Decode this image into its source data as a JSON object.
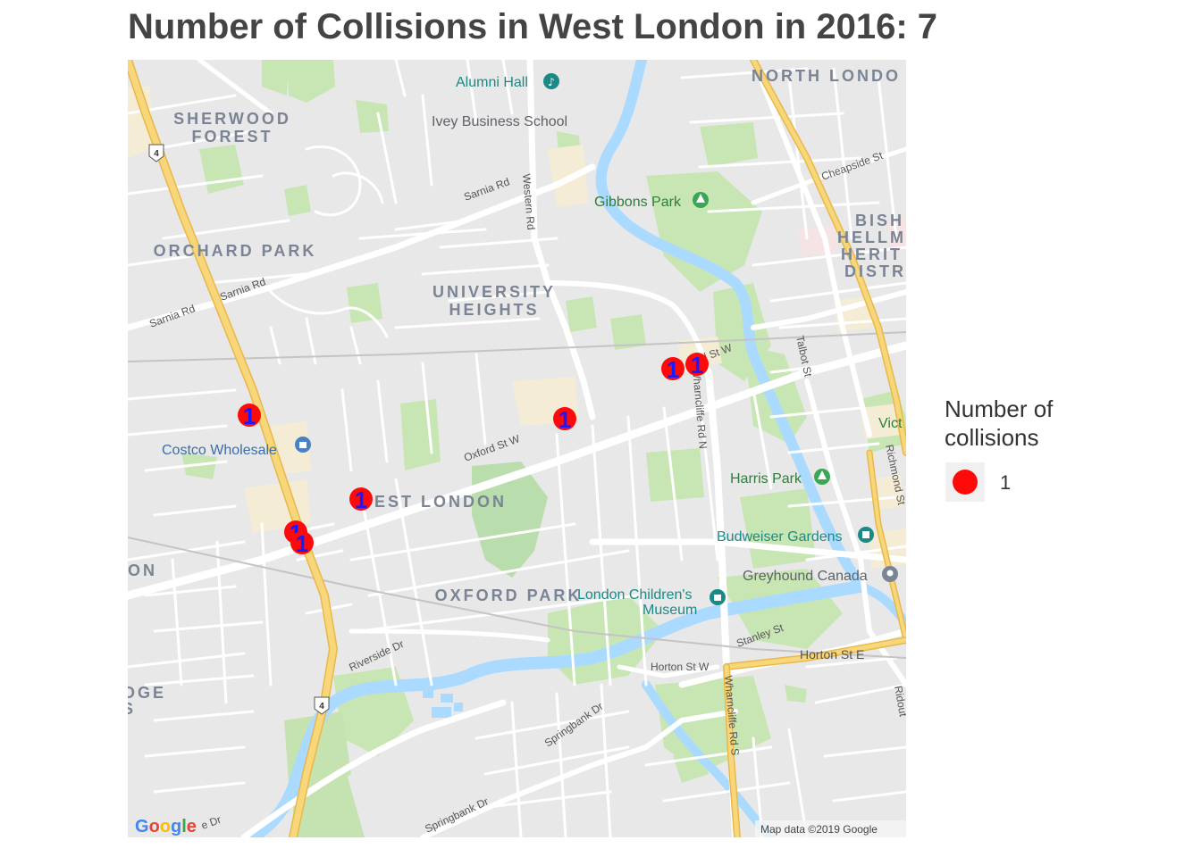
{
  "title": "Number of Collisions in West London in 2016: 7",
  "colors": {
    "marker": "#ff0a0a",
    "marker_text": "#1a1aff",
    "map_bg": "#e8e8e8",
    "park": "#c8e6b4",
    "water": "#aadaff",
    "highway": "#f7d77a",
    "campus": "#f5ecd5"
  },
  "map": {
    "area_labels": [
      {
        "name": "sherwood-forest",
        "lines": [
          "SHERWOOD",
          "FOREST"
        ]
      },
      {
        "name": "orchard-park",
        "lines": [
          "ORCHARD PARK"
        ]
      },
      {
        "name": "university-heights",
        "lines": [
          "UNIVERSITY",
          "HEIGHTS"
        ]
      },
      {
        "name": "west-london",
        "lines": [
          "WEST LONDON"
        ]
      },
      {
        "name": "oxford-park",
        "lines": [
          "OXFORD PARK"
        ]
      },
      {
        "name": "north-london",
        "lines": [
          "NORTH LONDO"
        ]
      },
      {
        "name": "bishop-hellmuth",
        "lines": [
          "BISH",
          "HELLM",
          "HERIT",
          "DISTR"
        ]
      },
      {
        "name": "edge-on",
        "lines": [
          "ON"
        ]
      },
      {
        "name": "edge-oge",
        "lines": [
          "OGE",
          "S"
        ]
      }
    ],
    "pois": [
      {
        "name": "alumni-hall",
        "label": "Alumni Hall",
        "icon": "music-note-icon"
      },
      {
        "name": "ivey-business-school",
        "label": "Ivey Business School"
      },
      {
        "name": "gibbons-park",
        "label": "Gibbons Park",
        "icon": "tree-icon"
      },
      {
        "name": "costco-wholesale",
        "label": "Costco Wholesale",
        "icon": "shopping-bag-icon"
      },
      {
        "name": "harris-park",
        "label": "Harris Park",
        "icon": "tree-icon"
      },
      {
        "name": "budweiser-gardens",
        "label": "Budweiser Gardens",
        "icon": "stadium-icon"
      },
      {
        "name": "greyhound-canada",
        "label": "Greyhound Canada",
        "icon": "pin-icon"
      },
      {
        "name": "london-childrens-museum",
        "label": "London Children's",
        "label2": "Museum",
        "icon": "museum-icon"
      },
      {
        "name": "victoria-park-edge",
        "label": "Vict"
      }
    ],
    "streets": [
      {
        "name": "sarnia-rd-1",
        "label": "Sarnia Rd"
      },
      {
        "name": "sarnia-rd-2",
        "label": "Sarnia Rd"
      },
      {
        "name": "sarnia-rd-3",
        "label": "Sarnia Rd"
      },
      {
        "name": "western-rd",
        "label": "Western Rd"
      },
      {
        "name": "oxford-st-w",
        "label": "Oxford St W"
      },
      {
        "name": "oxford-st-w-2",
        "label": "d St W"
      },
      {
        "name": "wharncliffe-rd-n",
        "label": "Wharncliffe Rd N"
      },
      {
        "name": "wharncliffe-rd-s",
        "label": "Wharncliffe Rd S"
      },
      {
        "name": "talbot-st",
        "label": "Talbot St"
      },
      {
        "name": "richmond-st",
        "label": "Richmond St"
      },
      {
        "name": "cheapside-st",
        "label": "Cheapside St"
      },
      {
        "name": "riverside-dr",
        "label": "Riverside Dr"
      },
      {
        "name": "springbank-dr-1",
        "label": "Springbank Dr"
      },
      {
        "name": "springbank-dr-2",
        "label": "Springbank Dr"
      },
      {
        "name": "horton-st-w",
        "label": "Horton St W"
      },
      {
        "name": "horton-st-e",
        "label": "Horton St E"
      },
      {
        "name": "stanley-st",
        "label": "Stanley St"
      },
      {
        "name": "ridout-st",
        "label": "Ridout"
      },
      {
        "name": "e-dr",
        "label": "e Dr"
      }
    ],
    "shields": [
      {
        "name": "highway-4-shield-north",
        "label": "4"
      },
      {
        "name": "highway-4-shield-south",
        "label": "4"
      }
    ],
    "google_logo": "Google",
    "attribution": "Map data ©2019 Google"
  },
  "collisions": [
    {
      "count": "1"
    },
    {
      "count": "1"
    },
    {
      "count": "1"
    },
    {
      "count": "1"
    },
    {
      "count": "1"
    },
    {
      "count": "1"
    },
    {
      "count": "1"
    }
  ],
  "legend": {
    "title": "Number of\ncollisions",
    "label": "1"
  }
}
